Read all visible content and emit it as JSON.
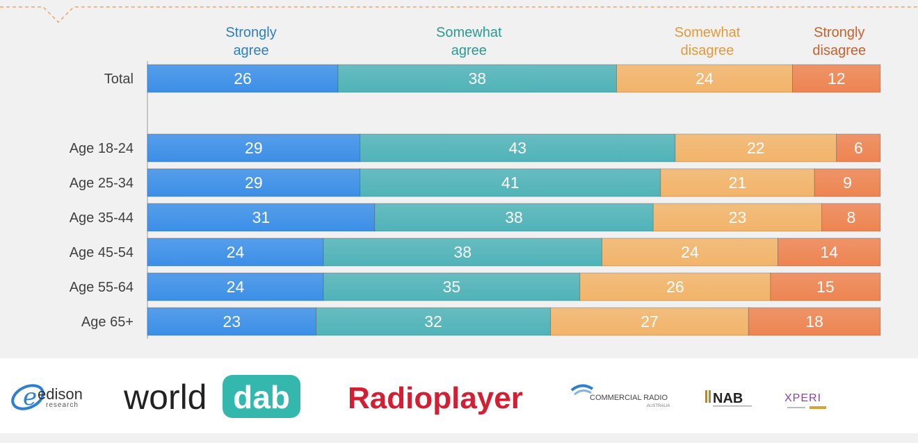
{
  "chart_data": {
    "type": "bar",
    "orientation": "horizontal",
    "stacked": true,
    "categories": [
      "Total",
      "Age 18-24",
      "Age 25-34",
      "Age 35-44",
      "Age 45-54",
      "Age 55-64",
      "Age 65+"
    ],
    "series": [
      {
        "name": "Strongly agree",
        "color": "#3b8fe8",
        "values": [
          26,
          29,
          29,
          31,
          24,
          24,
          23
        ]
      },
      {
        "name": "Somewhat agree",
        "color": "#4fb3b8",
        "values": [
          38,
          43,
          41,
          38,
          38,
          35,
          32
        ]
      },
      {
        "name": "Somewhat disagree",
        "color": "#f2b46a",
        "values": [
          24,
          22,
          21,
          23,
          24,
          26,
          27
        ]
      },
      {
        "name": "Strongly disagree",
        "color": "#ee8451",
        "values": [
          12,
          6,
          9,
          8,
          14,
          15,
          18
        ]
      }
    ],
    "legend_labels": [
      {
        "line1": "Strongly",
        "line2": "agree",
        "color": "#2c7fc4"
      },
      {
        "line1": "Somewhat",
        "line2": "agree",
        "color": "#2a9a92"
      },
      {
        "line1": "Somewhat",
        "line2": "disagree",
        "color": "#e09a3e"
      },
      {
        "line1": "Strongly",
        "line2": "disagree",
        "color": "#c8602e"
      }
    ],
    "legend_placement": "top",
    "xlim": [
      0,
      100
    ],
    "grid": false,
    "title": "",
    "xlabel": "",
    "ylabel": ""
  },
  "logos": {
    "edison": {
      "line1": "edison",
      "line2": "research"
    },
    "worlddab": {
      "word": "world",
      "badge": "dab"
    },
    "radioplayer": {
      "text": "Radioplayer"
    },
    "cra": {
      "line1": "COMMERCIAL RADIO",
      "line2": "AUSTRALIA"
    },
    "nab": {
      "text": "NAB"
    },
    "xperi": {
      "text": "XPERI"
    }
  },
  "colors": {
    "background": "#f1f1f1",
    "deco_line": "#f0a36a",
    "logo_strip": "#ffffff"
  }
}
